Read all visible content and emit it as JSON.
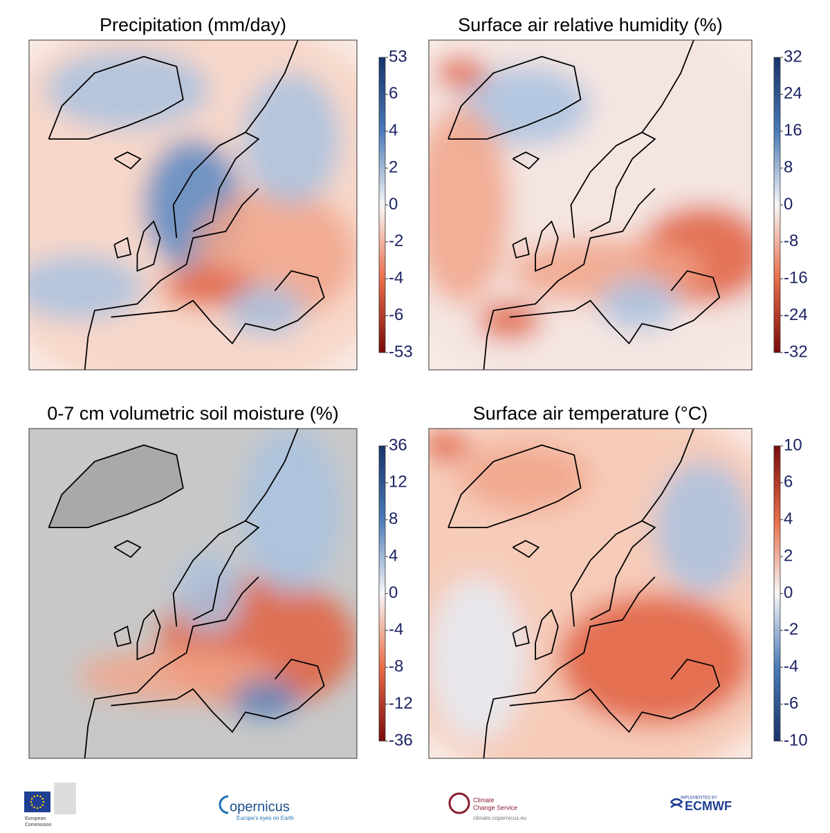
{
  "panels": [
    {
      "title": "Precipitation (mm/day)",
      "ticks": [
        53,
        6,
        4,
        2,
        0,
        -2,
        -4,
        -6,
        -53
      ],
      "colormap": "blue-red",
      "ocean": "none"
    },
    {
      "title": "Surface air relative humidity (%)",
      "ticks": [
        32,
        24,
        16,
        8,
        0,
        -8,
        -16,
        -24,
        -32
      ],
      "colormap": "blue-red",
      "ocean": "none"
    },
    {
      "title": "0-7 cm volumetric soil moisture (%)",
      "ticks": [
        36,
        12,
        8,
        4,
        0,
        -4,
        -8,
        -12,
        -36
      ],
      "colormap": "blue-red",
      "ocean": "gray"
    },
    {
      "title": "Surface air temperature (°C)",
      "ticks": [
        10,
        6,
        4,
        2,
        0,
        -2,
        -4,
        -6,
        -10
      ],
      "colormap": "red-blue",
      "ocean": "none"
    }
  ],
  "footer": {
    "eu": [
      "European",
      "Commission"
    ],
    "copernicus": [
      "opernicus",
      "Europe's eyes on Earth"
    ],
    "c3s": [
      "Climate",
      "Change Service",
      "climate.copernicus.eu"
    ],
    "ecmwf": [
      "IMPLEMENTED BY",
      "ECMWF"
    ]
  }
}
